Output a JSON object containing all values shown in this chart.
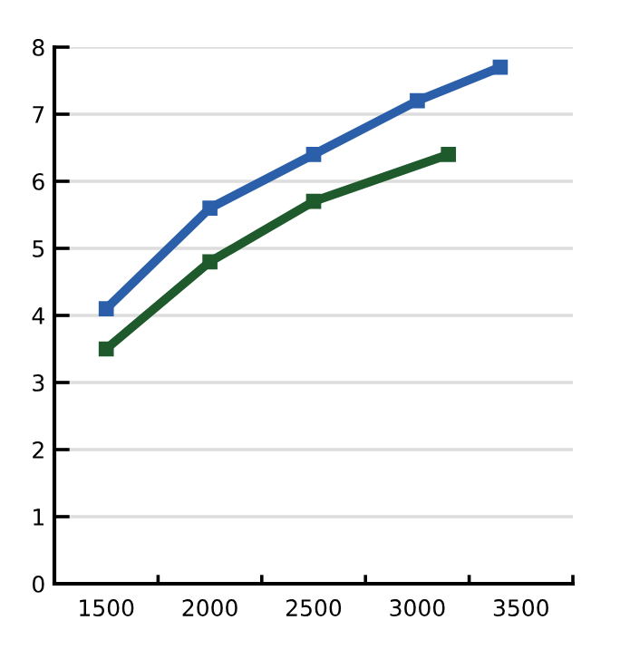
{
  "chart_data": {
    "type": "line",
    "marker": "square",
    "grid": "y",
    "legend": false,
    "xlim": [
      1250,
      3750
    ],
    "ylim": [
      0,
      8
    ],
    "xticks": [
      1500,
      2000,
      2500,
      3000,
      3500,
      {
        "value": 1750,
        "label": null
      },
      {
        "value": 2250,
        "label": null
      },
      {
        "value": 2750,
        "label": null
      },
      {
        "value": 3250,
        "label": null
      },
      {
        "value": 3750,
        "label": null
      }
    ],
    "yticks": [
      0,
      1,
      2,
      3,
      4,
      5,
      6,
      7,
      8
    ],
    "series": [
      {
        "color": "#2b5faa",
        "x": [
          1500,
          2000,
          2500,
          3000,
          3400
        ],
        "values": [
          4.1,
          5.6,
          6.4,
          7.2,
          7.7
        ]
      },
      {
        "color": "#1e5a2c",
        "x": [
          1500,
          2000,
          2500,
          3150
        ],
        "values": [
          3.5,
          4.8,
          5.7,
          6.4
        ]
      }
    ]
  }
}
